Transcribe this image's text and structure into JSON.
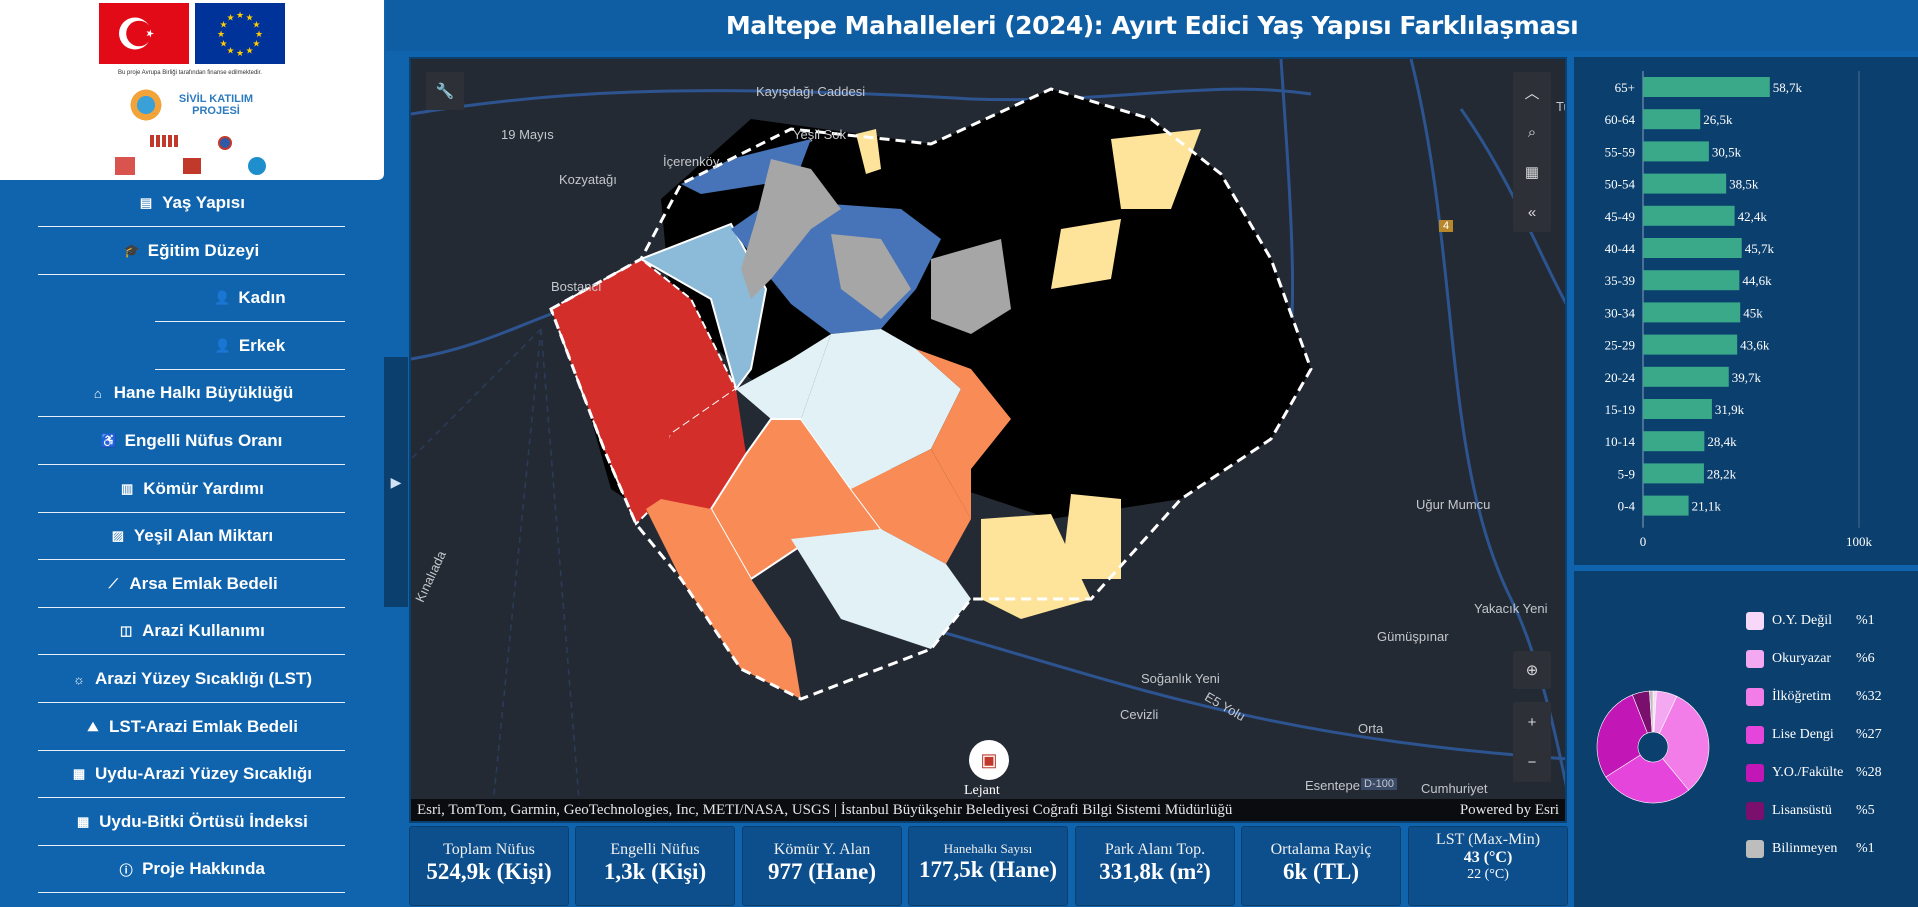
{
  "logos": {
    "caption": "Bu proje Avrupa Birliği tarafından finanse edilmektedir.",
    "project_name": "SİVİL KATILIM PROJESİ"
  },
  "header": {
    "title": "Maltepe Mahalleleri (2024): Ayırt Edici Yaş Yapısı Farklılaşması"
  },
  "nav": [
    {
      "label": "Yaş Yapısı",
      "icon": "bar-chart-icon"
    },
    {
      "label": "Eğitim Düzeyi",
      "icon": "graduation-cap-icon"
    },
    {
      "label": "Kadın",
      "icon": "user-icon"
    },
    {
      "label": "Erkek",
      "icon": "user-icon"
    },
    {
      "label": "Hane Halkı Büyüklüğü",
      "icon": "home-icon"
    },
    {
      "label": "Engelli Nüfus Oranı",
      "icon": "wheelchair-icon"
    },
    {
      "label": "Kömür Yardımı",
      "icon": "column-chart-icon"
    },
    {
      "label": "Yeşil Alan Miktarı",
      "icon": "image-icon"
    },
    {
      "label": "Arsa Emlak Bedeli",
      "icon": "line-chart-icon"
    },
    {
      "label": "Arazi Kullanımı",
      "icon": "map-icon"
    },
    {
      "label": "Arazi Yüzey Sıcaklığı (LST)",
      "icon": "sun-icon"
    },
    {
      "label": "LST-Arazi Emlak Bedeli",
      "icon": "landscape-icon"
    },
    {
      "label": "Uydu-Arazi Yüzey Sıcaklığı",
      "icon": "satellite-icon"
    },
    {
      "label": "Uydu-Bitki Örtüsü İndeksi",
      "icon": "satellite-icon"
    },
    {
      "label": "Proje Hakkında",
      "icon": "info-icon"
    }
  ],
  "map": {
    "attribution": "Esri, TomTom, Garmin, GeoTechnologies, Inc, METI/NASA, USGS | İstanbul Büyükşehir Belediyesi Coğrafi Bilgi Sistemi Müdürlüğü",
    "powered_by": "Powered by Esri",
    "legend_button": "Lejant",
    "places": [
      "Kayışdağı Caddesi",
      "19 Mayıs",
      "Yeşil Sok",
      "İçerenköy",
      "Kozyatağı",
      "Bostancı",
      "Uğur Mumcu",
      "Yakacık Yeni",
      "Gümüşpınar",
      "Soğanlık Yeni",
      "Cevizli",
      "Orta",
      "Esentepe",
      "Cumhuriyet",
      "Kınalıada",
      "E5 Yolu",
      "D-100",
      "Tur",
      "4"
    ],
    "region_colors": {
      "dark_red": "#d42e2a",
      "orange": "#f98b56",
      "light_blue": "#e1f1f6",
      "mid_blue": "#8cbad9",
      "blue": "#4774b8",
      "yellow": "#fde49a",
      "gray": "#a6a6a6",
      "no_data": "#000000"
    }
  },
  "kpis": [
    {
      "label": "Toplam Nüfus",
      "value": "524,9k (Kişi)"
    },
    {
      "label": "Engelli Nüfus",
      "value": "1,3k (Kişi)"
    },
    {
      "label": "Kömür Y. Alan",
      "value": "977 (Hane)"
    },
    {
      "label": "Hanehalkı Sayısı",
      "value": "177,5k (Hane)"
    },
    {
      "label": "Park Alanı Top.",
      "value": "331,8k (m²)"
    },
    {
      "label": "Ortalama Rayiç",
      "value": "6k (TL)"
    },
    {
      "label": "LST (Max-Min)",
      "value": "43 (°C)",
      "value2": "22 (°C)"
    }
  ],
  "chart_data": [
    {
      "type": "bar",
      "orientation": "horizontal",
      "categories": [
        "65+",
        "60-64",
        "55-59",
        "50-54",
        "45-49",
        "40-44",
        "35-39",
        "30-34",
        "25-29",
        "20-24",
        "15-19",
        "10-14",
        "5-9",
        "0-4"
      ],
      "values": [
        58.7,
        26.5,
        30.5,
        38.5,
        42.4,
        45.7,
        44.6,
        45,
        43.6,
        39.7,
        31.9,
        28.4,
        28.2,
        21.1
      ],
      "data_labels": [
        "58,7k",
        "26,5k",
        "30,5k",
        "38,5k",
        "42,4k",
        "45,7k",
        "44,6k",
        "45k",
        "43,6k",
        "39,7k",
        "31,9k",
        "28,4k",
        "28,2k",
        "21,1k"
      ],
      "xlim": [
        0,
        100
      ],
      "xticks": [
        "0",
        "100k"
      ],
      "bar_color": "#3aa98a"
    },
    {
      "type": "pie",
      "donut": true,
      "labels": [
        "O.Y. Değil",
        "Okuryazar",
        "İlköğretim",
        "Lise Dengi",
        "Y.O./Fakülte",
        "Lisansüstü",
        "Bilinmeyen"
      ],
      "values": [
        1,
        6,
        32,
        27,
        28,
        5,
        1
      ],
      "value_labels": [
        "%1",
        "%6",
        "%32",
        "%27",
        "%28",
        "%5",
        "%1"
      ],
      "colors": [
        "#f8d8f8",
        "#f5a8f2",
        "#f27de9",
        "#e645dc",
        "#c217b6",
        "#7a0f6e",
        "#bdbdbd"
      ]
    }
  ]
}
